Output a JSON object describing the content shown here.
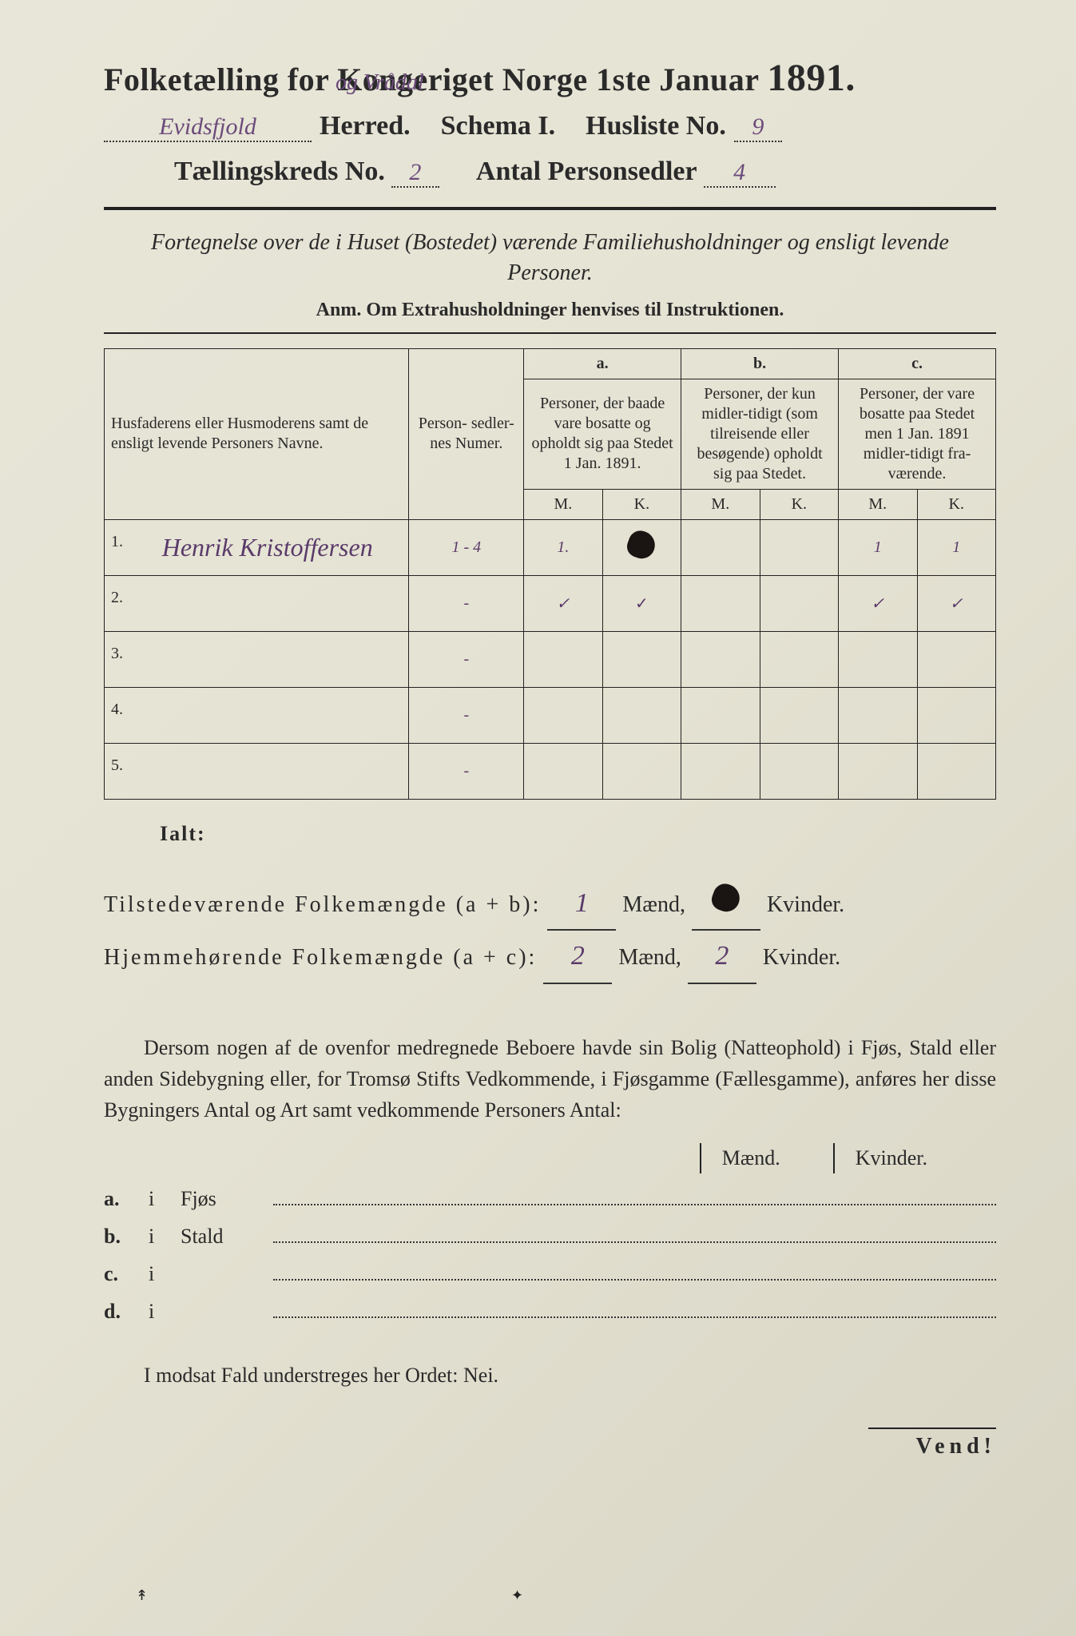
{
  "header": {
    "title_pre": "Folketælling for Kongeriget Norge 1ste Januar",
    "year": "1891.",
    "annotation_above": "og Vrådal",
    "herred_value": "Evidsfjold",
    "herred_label": "Herred.",
    "schema": "Schema I.",
    "husliste_label": "Husliste No.",
    "husliste_value": "9",
    "kreds_label": "Tællingskreds No.",
    "kreds_value": "2",
    "antal_label": "Antal Personsedler",
    "antal_value": "4"
  },
  "subtitle": "Fortegnelse over de i Huset (Bostedet) værende Familiehusholdninger og ensligt levende Personer.",
  "anm": "Anm.  Om Extrahusholdninger henvises til Instruktionen.",
  "columns": {
    "name": "Husfaderens eller Husmoderens samt de ensligt levende Personers Navne.",
    "numer": "Person-\nsedler-\nnes\nNumer.",
    "a_head": "a.",
    "a": "Personer, der baade vare bosatte og opholdt sig paa Stedet 1 Jan. 1891.",
    "b_head": "b.",
    "b": "Personer, der kun midler-tidigt (som tilreisende eller besøgende) opholdt sig paa Stedet.",
    "c_head": "c.",
    "c": "Personer, der vare bosatte paa Stedet men 1 Jan. 1891 midler-tidigt fra-værende.",
    "m": "M.",
    "k": "K."
  },
  "rows": [
    {
      "n": "1.",
      "name": "Henrik Kristoffersen",
      "numer": "1 - 4",
      "a_m": "1.",
      "a_k": "●",
      "b_m": "",
      "b_k": "",
      "c_m": "1",
      "c_k": "1"
    },
    {
      "n": "2.",
      "name": "",
      "numer": "-",
      "a_m": "✓",
      "a_k": "✓",
      "b_m": "",
      "b_k": "",
      "c_m": "✓",
      "c_k": "✓"
    },
    {
      "n": "3.",
      "name": "",
      "numer": "-",
      "a_m": "",
      "a_k": "",
      "b_m": "",
      "b_k": "",
      "c_m": "",
      "c_k": ""
    },
    {
      "n": "4.",
      "name": "",
      "numer": "-",
      "a_m": "",
      "a_k": "",
      "b_m": "",
      "b_k": "",
      "c_m": "",
      "c_k": ""
    },
    {
      "n": "5.",
      "name": "",
      "numer": "-",
      "a_m": "",
      "a_k": "",
      "b_m": "",
      "b_k": "",
      "c_m": "",
      "c_k": ""
    }
  ],
  "ialt": "Ialt:",
  "totals": {
    "line1_label": "Tilstedeværende Folkemængde (a + b):",
    "line1_m": "1",
    "line1_k": "●",
    "line2_label": "Hjemmehørende Folkemængde (a + c):",
    "line2_m": "2",
    "line2_k": "2",
    "maend": "Mænd,",
    "kvinder": "Kvinder."
  },
  "para": "Dersom nogen af de ovenfor medregnede Beboere havde sin Bolig (Natteophold) i Fjøs, Stald eller anden Sidebygning eller, for Tromsø Stifts Vedkommende, i Fjøsgamme (Fællesgamme), anføres her disse Bygningers Antal og Art samt vedkommende Personers Antal:",
  "bolig": {
    "maend": "Mænd.",
    "kvinder": "Kvinder.",
    "rows": [
      {
        "l": "a.",
        "i": "i",
        "name": "Fjøs"
      },
      {
        "l": "b.",
        "i": "i",
        "name": "Stald"
      },
      {
        "l": "c.",
        "i": "i",
        "name": ""
      },
      {
        "l": "d.",
        "i": "i",
        "name": ""
      }
    ]
  },
  "nei": "I modsat Fald understreges her Ordet: Nei.",
  "vend": "Vend!",
  "marks": {
    "left": "↟",
    "mid": "✦"
  }
}
